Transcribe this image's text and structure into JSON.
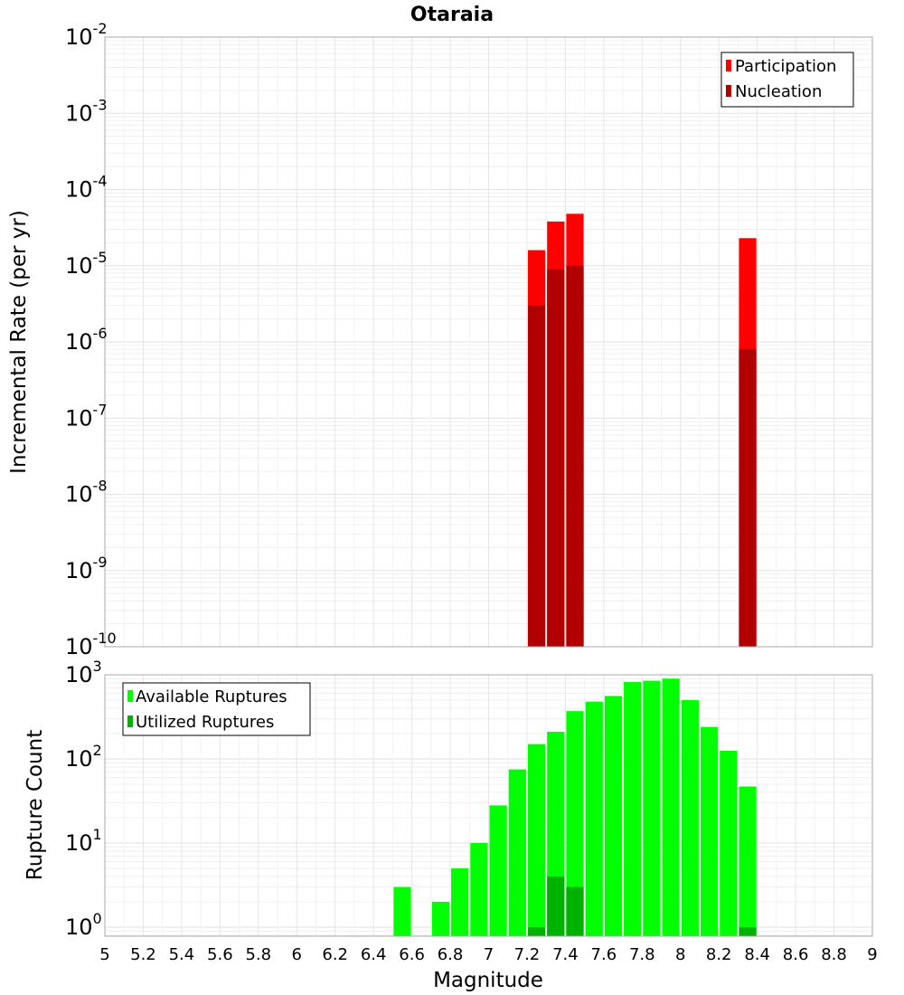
{
  "chart_data": [
    {
      "type": "bar",
      "title": "Otaraia",
      "xlabel": "",
      "ylabel": "Incremental Rate (per yr)",
      "yscale": "log",
      "xlim": [
        5,
        9
      ],
      "ylim": [
        1e-10,
        0.01
      ],
      "y_tick_exponents": [
        "-10",
        "-9",
        "-8",
        "-7",
        "-6",
        "-5",
        "-4",
        "-3",
        "-2"
      ],
      "y_tick_base": "10",
      "grid": true,
      "legend_position": "top-right",
      "colors": {
        "Participation": "#ff0000",
        "Nucleation": "#b20000"
      },
      "series": [
        {
          "name": "Participation",
          "x": [
            7.25,
            7.35,
            7.45,
            8.35
          ],
          "values": [
            1.6e-05,
            3.8e-05,
            4.8e-05,
            2.3e-05
          ]
        },
        {
          "name": "Nucleation",
          "x": [
            7.25,
            7.35,
            7.45,
            8.35
          ],
          "values": [
            3e-06,
            9e-06,
            1e-05,
            8e-07
          ]
        }
      ]
    },
    {
      "type": "bar",
      "title": "",
      "xlabel": "Magnitude",
      "ylabel": "Rupture Count",
      "yscale": "log",
      "xlim": [
        5,
        9
      ],
      "ylim": [
        0.78,
        1000
      ],
      "y_tick_exponents": [
        "0",
        "1",
        "2",
        "3"
      ],
      "y_tick_base": "10",
      "x_ticks": [
        "5",
        "5.2",
        "5.4",
        "5.6",
        "5.8",
        "6",
        "6.2",
        "6.4",
        "6.6",
        "6.8",
        "7",
        "7.2",
        "7.4",
        "7.6",
        "7.8",
        "8",
        "8.2",
        "8.4",
        "8.6",
        "8.8",
        "9"
      ],
      "grid": true,
      "legend_position": "top-left",
      "colors": {
        "Available Ruptures": "#00ff00",
        "Utilized Ruptures": "#00b200"
      },
      "series": [
        {
          "name": "Available Ruptures",
          "x": [
            6.55,
            6.75,
            6.85,
            6.95,
            7.05,
            7.15,
            7.25,
            7.35,
            7.45,
            7.55,
            7.65,
            7.75,
            7.85,
            7.95,
            8.05,
            8.15,
            8.25,
            8.35
          ],
          "values": [
            3,
            2,
            5,
            10,
            28,
            75,
            150,
            210,
            370,
            480,
            560,
            820,
            850,
            900,
            500,
            240,
            125,
            47
          ]
        },
        {
          "name": "Utilized Ruptures",
          "x": [
            7.25,
            7.35,
            7.45,
            8.35
          ],
          "values": [
            1,
            4,
            3,
            1
          ]
        }
      ]
    }
  ]
}
